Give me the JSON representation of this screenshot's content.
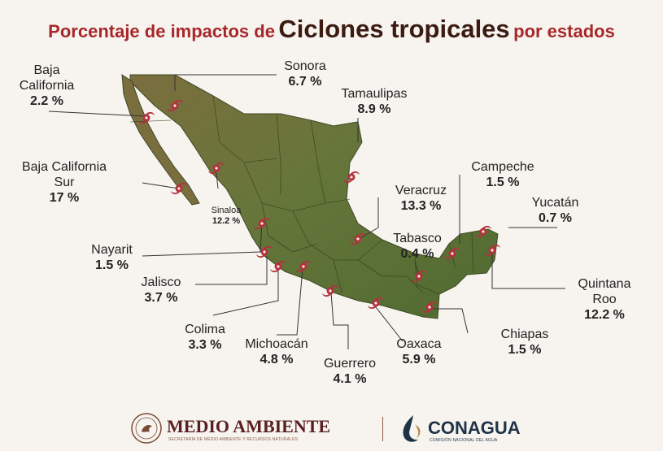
{
  "title": {
    "part1": "Porcentaje de impactos de",
    "part2": "Ciclones tropicales",
    "part3": "por estados"
  },
  "colors": {
    "title_red": "#a8272a",
    "title_dark": "#3b1b12",
    "land": "#6e7a3c",
    "cyclone_icon": "#b3323c",
    "leader_line": "#333333"
  },
  "map_data": {
    "states": [
      {
        "id": "sonora",
        "name": "Sonora",
        "value": "6.7 %"
      },
      {
        "id": "baja-california",
        "name": "Baja\nCalifornia",
        "value": "2.2 %"
      },
      {
        "id": "tamaulipas",
        "name": "Tamaulipas",
        "value": "8.9 %"
      },
      {
        "id": "baja-california-sur",
        "name": "Baja California\nSur",
        "value": "17 %"
      },
      {
        "id": "campeche",
        "name": "Campeche",
        "value": "1.5 %"
      },
      {
        "id": "veracruz",
        "name": "Veracruz",
        "value": "13.3 %"
      },
      {
        "id": "yucatan",
        "name": "Yucatán",
        "value": "0.7 %"
      },
      {
        "id": "sinaloa",
        "name": "Sinaloa",
        "value": "12.2 %"
      },
      {
        "id": "tabasco",
        "name": "Tabasco",
        "value": "0.4 %"
      },
      {
        "id": "nayarit",
        "name": "Nayarit",
        "value": "1.5 %"
      },
      {
        "id": "jalisco",
        "name": "Jalisco",
        "value": "3.7 %"
      },
      {
        "id": "quintana-roo",
        "name": "Quintana\nRoo",
        "value": "12.2 %"
      },
      {
        "id": "colima",
        "name": "Colima",
        "value": "3.3 %"
      },
      {
        "id": "michoacan",
        "name": "Michoacán",
        "value": "4.8 %"
      },
      {
        "id": "chiapas",
        "name": "Chiapas",
        "value": "1.5 %"
      },
      {
        "id": "oaxaca",
        "name": "Oaxaca",
        "value": "5.9 %"
      },
      {
        "id": "guerrero",
        "name": "Guerrero",
        "value": "4.1 %"
      }
    ]
  },
  "footer": {
    "semarnat_name": "MEDIO AMBIENTE",
    "semarnat_sub": "SECRETARÍA DE MEDIO AMBIENTE Y RECURSOS NATURALES",
    "conagua_name": "CONAGUA",
    "conagua_sub": "COMISIÓN NACIONAL DEL AGUA"
  }
}
